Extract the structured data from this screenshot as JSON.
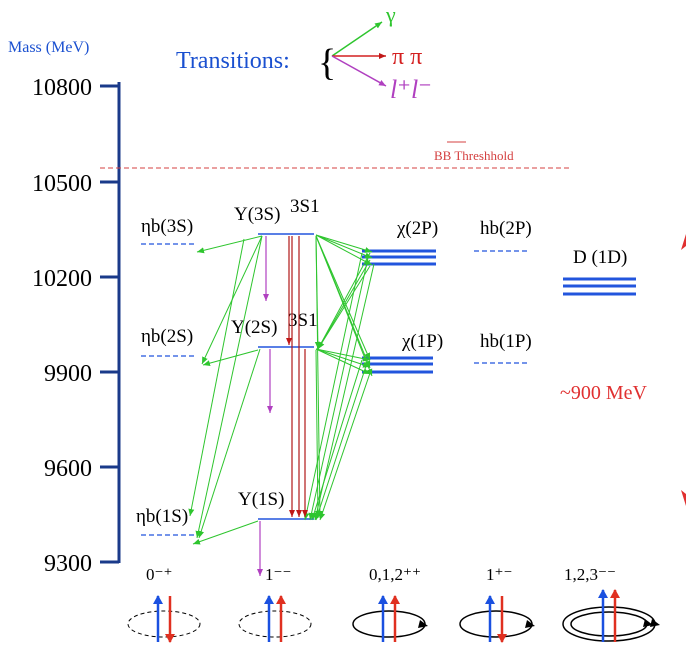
{
  "axis": {
    "title": "Mass (MeV)",
    "ticks": [
      {
        "label": "10800",
        "value": 10800
      },
      {
        "label": "10500",
        "value": 10500
      },
      {
        "label": "10200",
        "value": 10200
      },
      {
        "label": "9900",
        "value": 9900
      },
      {
        "label": "9600",
        "value": 9600
      },
      {
        "label": "9300",
        "value": 9300
      }
    ]
  },
  "legend": {
    "title": "Transitions:",
    "gamma": "γ",
    "pipi": "π  π",
    "leptons": "l⁺l⁻",
    "colors": {
      "gamma": "#2ec52e",
      "pipi": "#d42020",
      "leptons": "#b040c0"
    }
  },
  "threshold": {
    "label": "BB Threshhold",
    "mass": 10558,
    "color": "#d44040"
  },
  "states": {
    "eta3s": "ηb(3S)",
    "eta2s": "ηb(2S)",
    "eta1s": "ηb(1S)",
    "ups3s": "Υ(3S)",
    "ups2s": "Υ(2S)",
    "ups1s": "Υ(1S)",
    "spec3s1": "3S1",
    "chi2p": "χ(2P)",
    "chi1p": "χ(1P)",
    "hb2p": "hb(2P)",
    "hb1p": "hb(1P)",
    "d1d": "D (1D)"
  },
  "gap_label": "~900 MeV",
  "quantum_numbers": [
    "0⁻⁺",
    "1⁻⁻",
    "0,1,2⁺⁺",
    "1⁺⁻",
    "1,2,3⁻⁻"
  ],
  "colors": {
    "axis": "#1a3a8a",
    "level": "#2255dd",
    "title_blue": "#1a50d0",
    "gap": "#e03030",
    "spin_up": "#1a50e0",
    "spin_down": "#e03020"
  }
}
